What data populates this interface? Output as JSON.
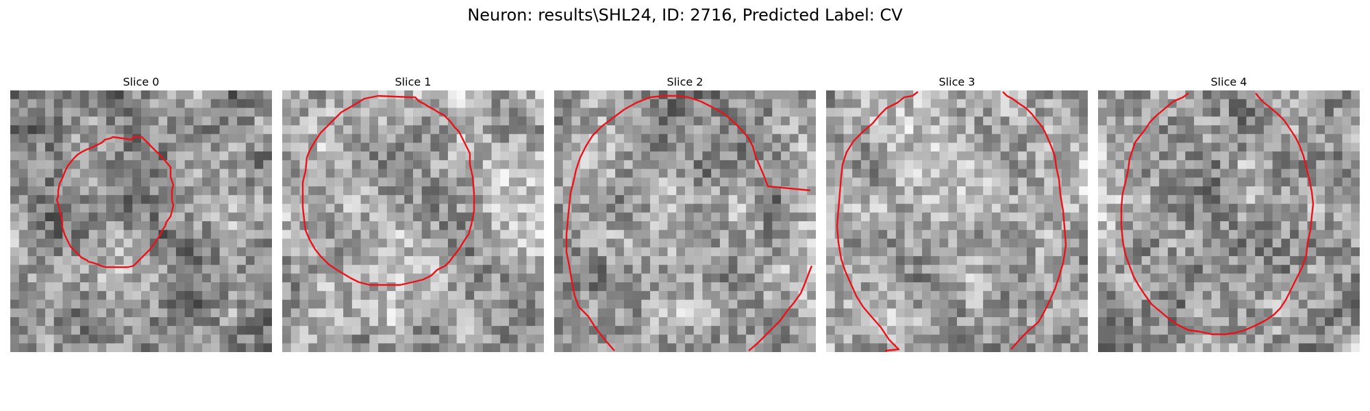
{
  "figure": {
    "title": "Neuron: results\\SHL24, ID: 2716, Predicted Label: CV"
  },
  "colors": {
    "contour": "#e8141a",
    "background": "#ffffff"
  },
  "image": {
    "colormap": "gray",
    "grid_size": 30
  },
  "slices": [
    {
      "title": "Slice 0",
      "seed": 11,
      "darkness": 0.1
    },
    {
      "title": "Slice 1",
      "seed": 23,
      "darkness": 0.0
    },
    {
      "title": "Slice 2",
      "seed": 37,
      "darkness": 0.05
    },
    {
      "title": "Slice 3",
      "seed": 51,
      "darkness": 0.02
    },
    {
      "title": "Slice 4",
      "seed": 67,
      "darkness": 0.04
    }
  ]
}
